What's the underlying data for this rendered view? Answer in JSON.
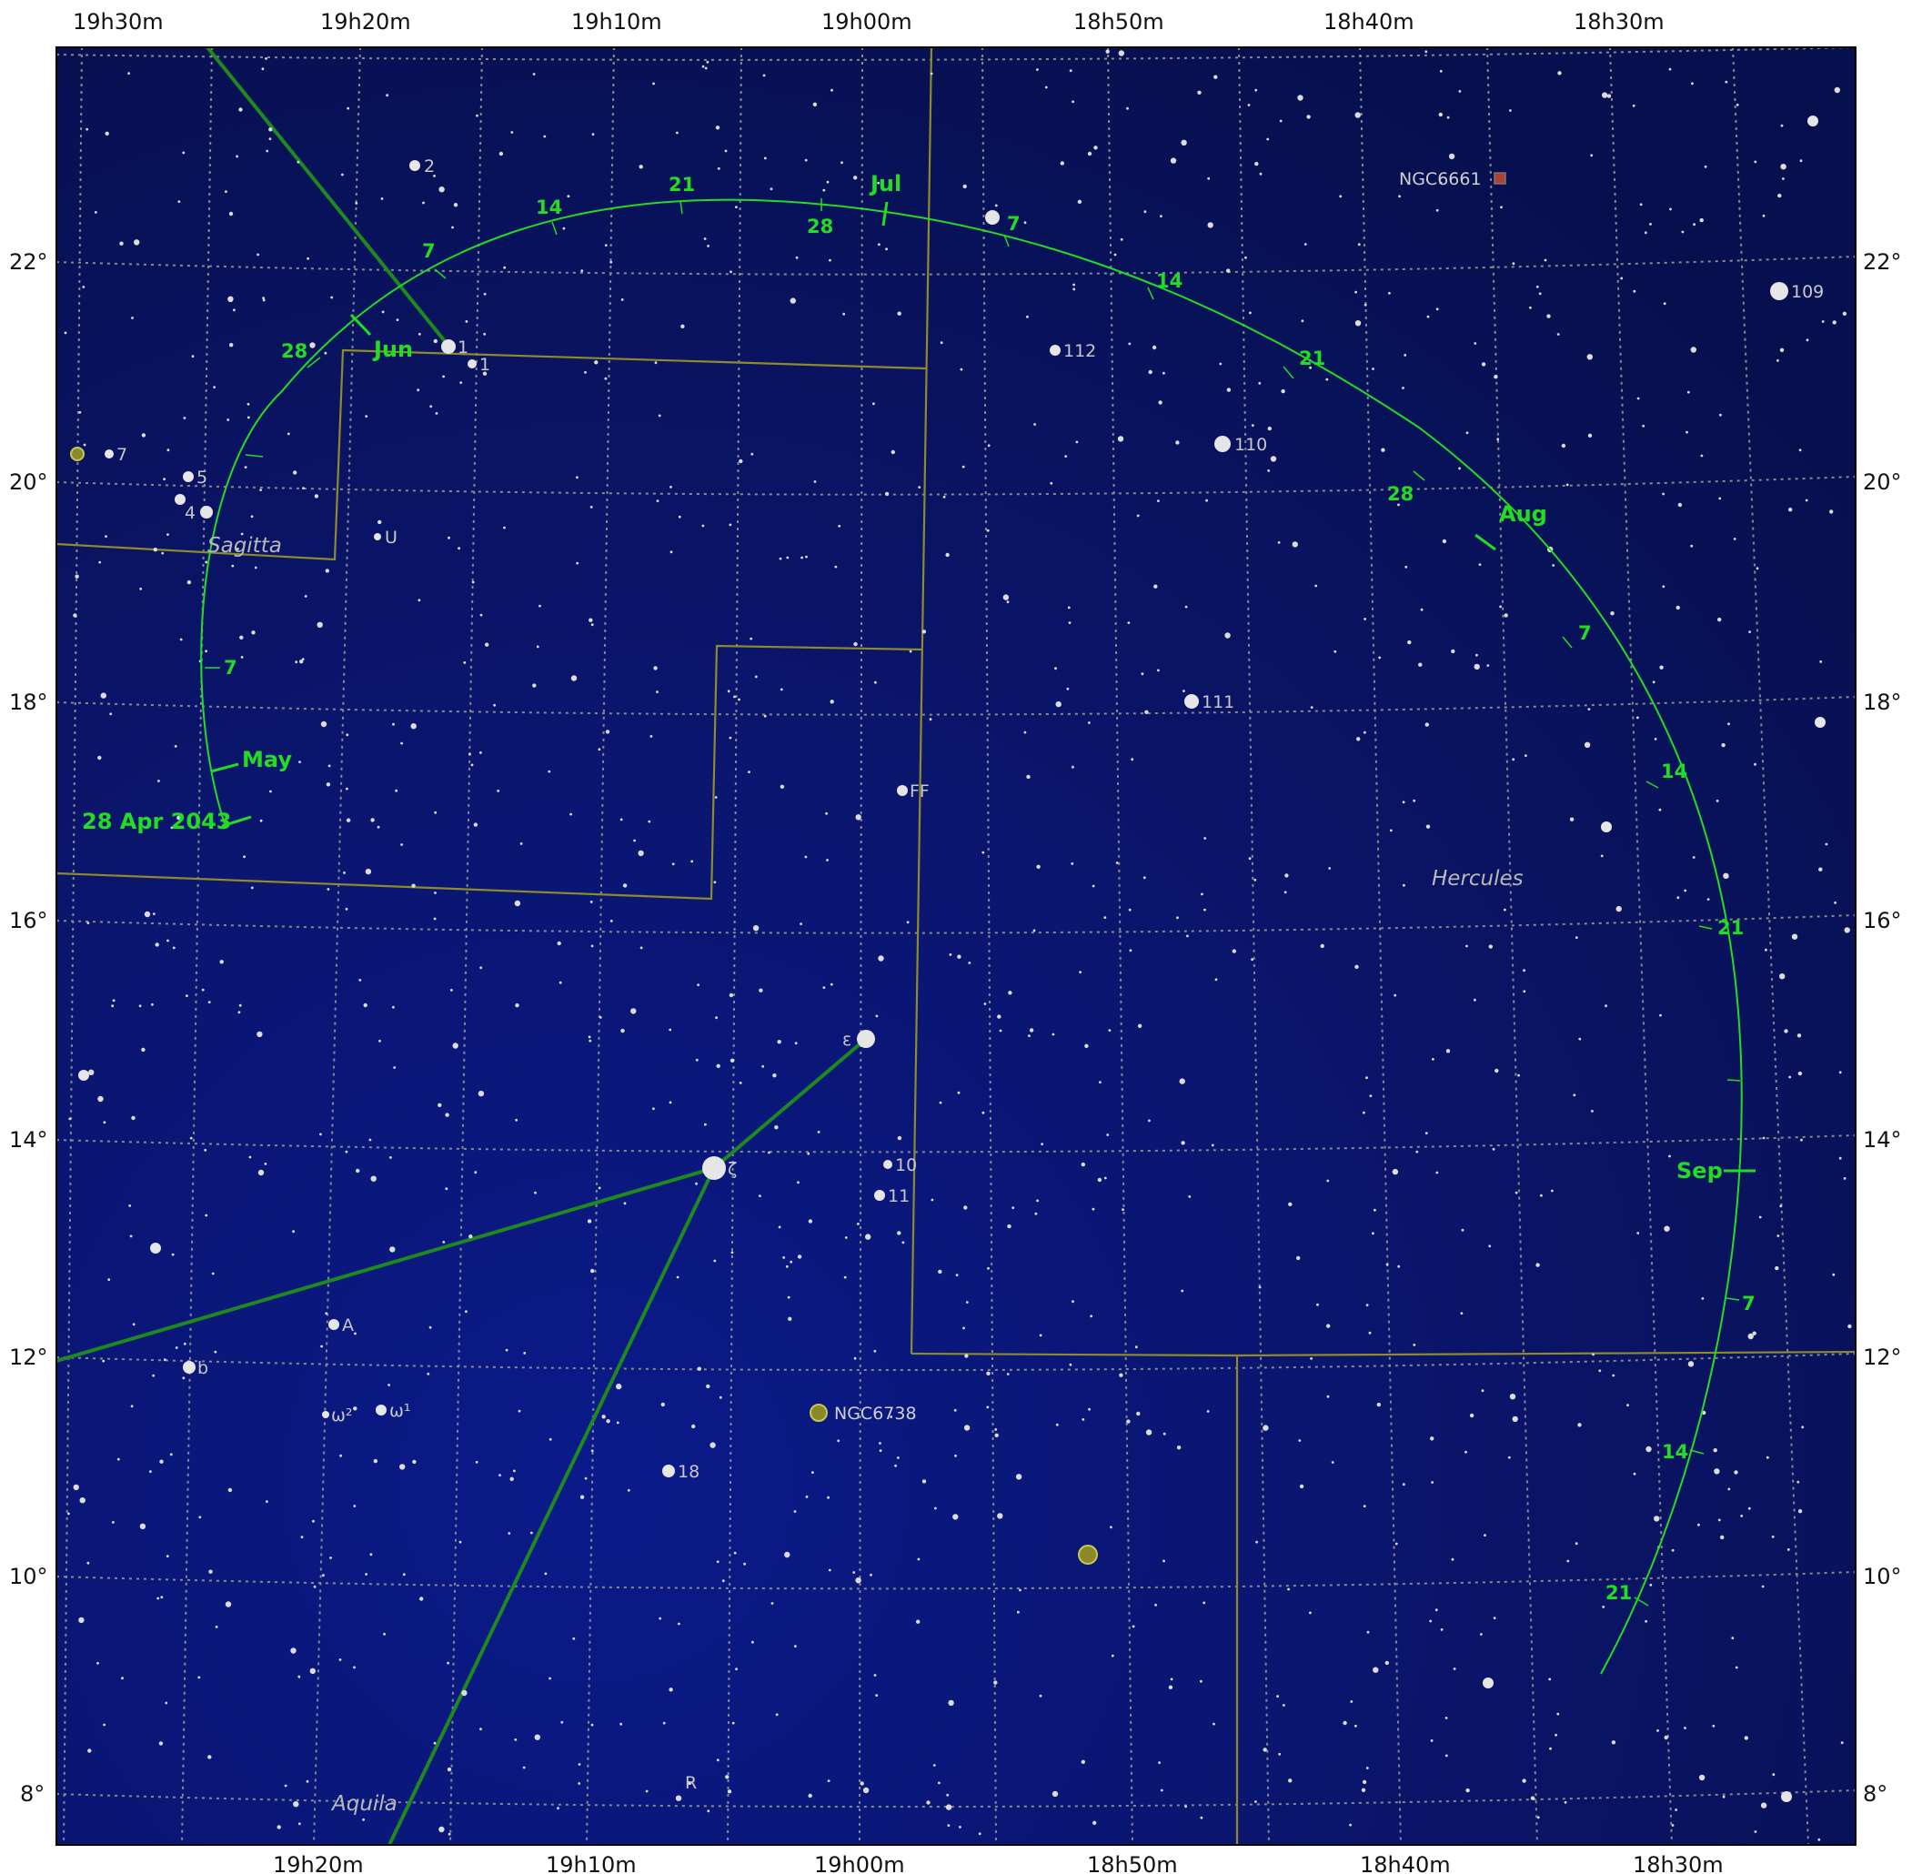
{
  "map": {
    "ra_top_labels": [
      "19h30m",
      "19h20m",
      "19h10m",
      "19h00m",
      "18h50m",
      "18h40m",
      "18h30m"
    ],
    "ra_bottom_labels": [
      "19h20m",
      "19h10m",
      "19h00m",
      "18h50m",
      "18h40m",
      "18h30m"
    ],
    "dec_labels": [
      "22°",
      "20°",
      "18°",
      "16°",
      "14°",
      "12°",
      "10°",
      "8°"
    ],
    "constellations": [
      "Sagitta",
      "Hercules",
      "Aquila"
    ],
    "colors": {
      "background": "#0a0f5a",
      "grid": "#8a8a8a",
      "boundary": "#8f8a2a",
      "stick_figure": "#1e8a1e",
      "comet_path": "#22dd22",
      "star": "#e6e6e6",
      "cluster": "#8a8a2a"
    }
  },
  "labels": {
    "stars": [
      "2",
      "1",
      "1",
      "7",
      "5",
      "4",
      "U",
      "112",
      "110",
      "111",
      "109",
      "FF",
      "ε",
      "ζ",
      "10",
      "11",
      "A",
      "b",
      "ω²",
      "ω¹",
      "18",
      "R"
    ],
    "dso": [
      "NGC6661",
      "NGC6738"
    ]
  },
  "comet_path": {
    "start_label": "28 Apr 2043",
    "months": [
      "May",
      "Jun",
      "Jul",
      "Aug",
      "Sep"
    ],
    "day_ticks": [
      "7",
      "28",
      "7",
      "14",
      "21",
      "28",
      "7",
      "14",
      "21",
      "28",
      "7",
      "14",
      "21",
      "7",
      "14",
      "21"
    ]
  }
}
